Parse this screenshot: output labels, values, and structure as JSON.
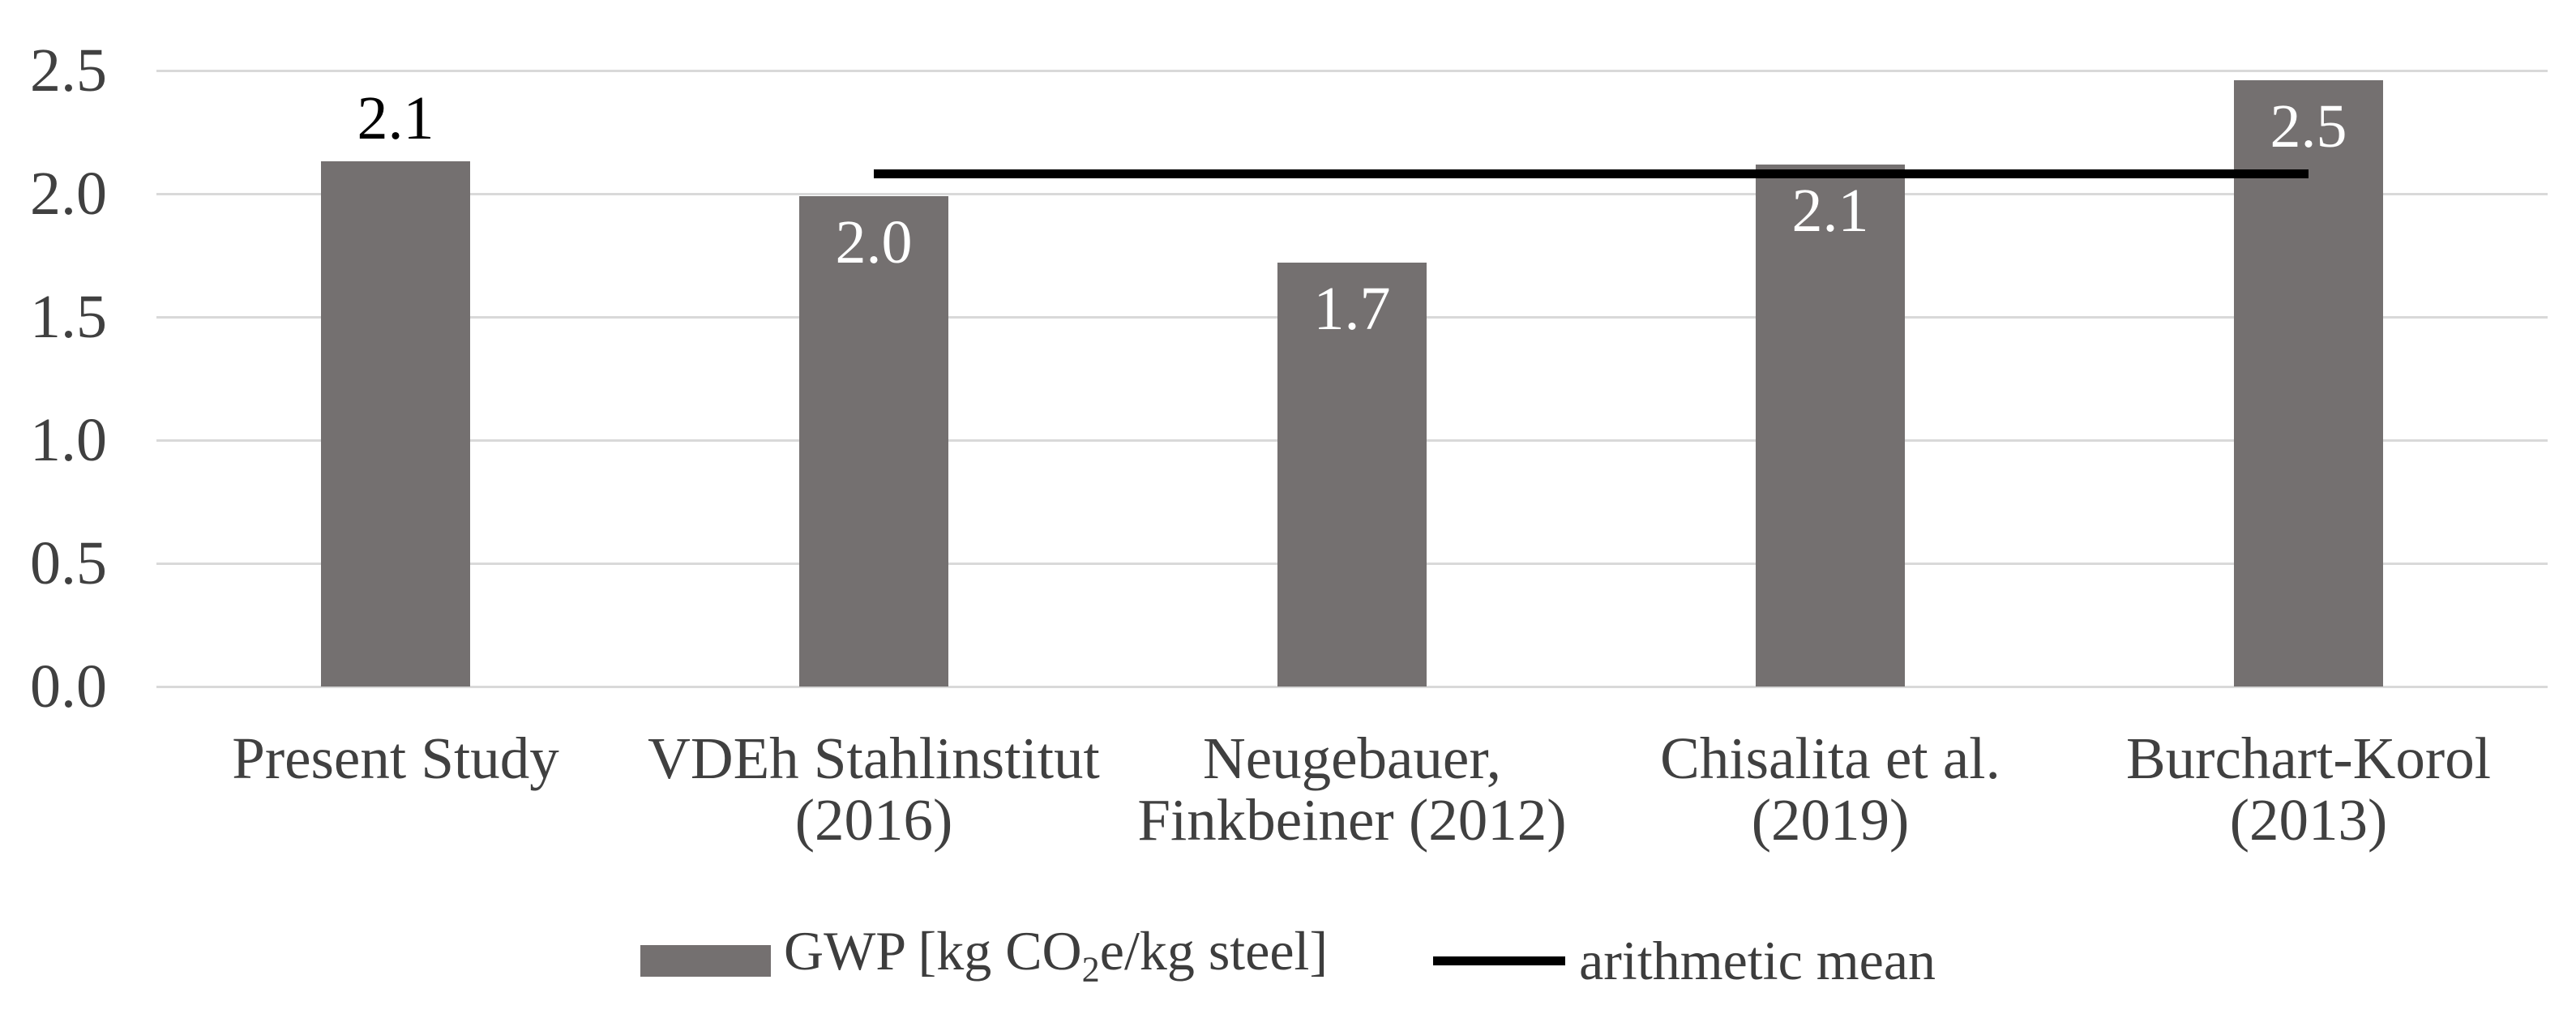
{
  "chart_data": {
    "type": "bar",
    "title": "",
    "xlabel": "",
    "ylabel": "",
    "categories": [
      "Present Study",
      "VDEh Stahlinstitut (2016)",
      "Neugebauer, Finkbeiner (2012)",
      "Chisalita et al. (2019)",
      "Burchart-Korol (2013)"
    ],
    "category_label_lines": [
      [
        "Present Study"
      ],
      [
        "VDEh Stahlinstitut",
        "(2016)"
      ],
      [
        "Neugebauer,",
        "Finkbeiner (2012)"
      ],
      [
        "Chisalita et al.",
        "(2019)"
      ],
      [
        "Burchart-Korol",
        "(2013)"
      ]
    ],
    "series": [
      {
        "name": "GWP [kg CO2e/kg steel]",
        "type": "bar",
        "values": [
          2.1,
          2.0,
          1.7,
          2.1,
          2.5
        ],
        "values_precise": [
          2.13,
          1.99,
          1.72,
          2.12,
          2.46
        ],
        "data_labels": [
          "2.1",
          "2.0",
          "1.7",
          "2.1",
          "2.5"
        ],
        "label_placement": [
          "above",
          "inside",
          "inside",
          "inside",
          "inside"
        ]
      },
      {
        "name": "arithmetic mean",
        "type": "line",
        "value": 2.08,
        "span_categories": [
          2,
          5
        ]
      }
    ],
    "ylim": [
      0.0,
      2.5
    ],
    "yticks": [
      "0.0",
      "0.5",
      "1.0",
      "1.5",
      "2.0",
      "2.5"
    ],
    "grid": true,
    "legend_position": "bottom-center"
  },
  "legend": {
    "gwp": {
      "pre": "GWP [kg CO",
      "sub": "2",
      "post": "e/kg steel]"
    },
    "mean": {
      "label": "arithmetic mean"
    }
  },
  "colors": {
    "bar": "#747070",
    "grid": "#d9d9d9",
    "axis_text": "#404040",
    "mean_line": "#000000",
    "label_inside": "#ffffff",
    "label_above": "#000000",
    "legend_text": "#3d3d3d",
    "background": "#ffffff"
  }
}
